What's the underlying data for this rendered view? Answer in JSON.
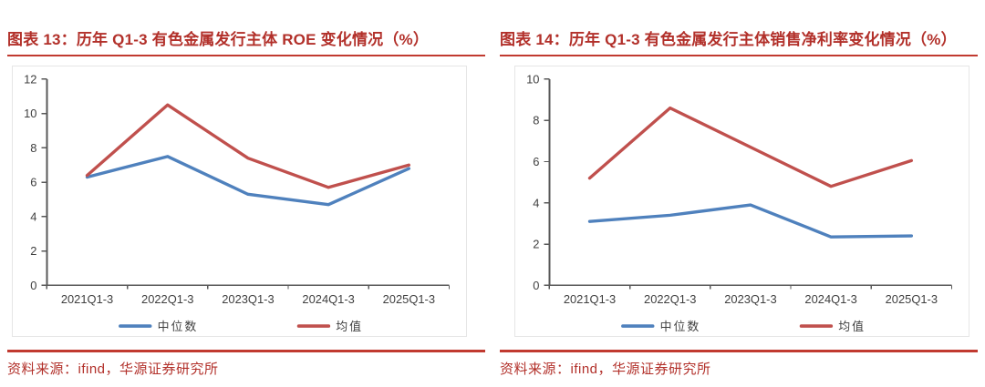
{
  "panels": [
    {
      "title": "图表 13：历年 Q1-3 有色金属发行主体 ROE 变化情况（%）",
      "source": "资料来源：ifind，华源证券研究所"
    },
    {
      "title": "图表 14：历年 Q1-3 有色金属发行主体销售净利率变化情况（%）",
      "source": "资料来源：ifind，华源证券研究所"
    }
  ],
  "colors": {
    "accent_red": "#B2302A",
    "rule_red": "#C13A30",
    "series_median_blue": "#4F81BD",
    "series_mean_red": "#C0504D",
    "axis_line": "#595959",
    "tick_label": "#3F3F3F"
  },
  "chart_data": [
    {
      "type": "line",
      "title": "历年 Q1-3 有色金属发行主体 ROE 变化情况（%）",
      "categories": [
        "2021Q1-3",
        "2022Q1-3",
        "2023Q1-3",
        "2024Q1-3",
        "2025Q1-3"
      ],
      "series": [
        {
          "name": "中位数",
          "color": "#4F81BD",
          "values": [
            6.3,
            7.5,
            5.3,
            4.7,
            6.8
          ]
        },
        {
          "name": "均值",
          "color": "#C0504D",
          "values": [
            6.4,
            10.5,
            7.4,
            5.7,
            7.0
          ]
        }
      ],
      "ylim": [
        0,
        12
      ],
      "ystep": 2,
      "grid": false,
      "legend_position": "bottom",
      "xlabel": "",
      "ylabel": ""
    },
    {
      "type": "line",
      "title": "历年 Q1-3 有色金属发行主体销售净利率变化情况（%）",
      "categories": [
        "2021Q1-3",
        "2022Q1-3",
        "2023Q1-3",
        "2024Q1-3",
        "2025Q1-3"
      ],
      "series": [
        {
          "name": "中位数",
          "color": "#4F81BD",
          "values": [
            3.1,
            3.4,
            3.9,
            2.35,
            2.4
          ]
        },
        {
          "name": "均值",
          "color": "#C0504D",
          "values": [
            5.2,
            8.6,
            6.7,
            4.8,
            6.05
          ]
        }
      ],
      "ylim": [
        0,
        10
      ],
      "ystep": 2,
      "grid": false,
      "legend_position": "bottom",
      "xlabel": "",
      "ylabel": ""
    }
  ]
}
